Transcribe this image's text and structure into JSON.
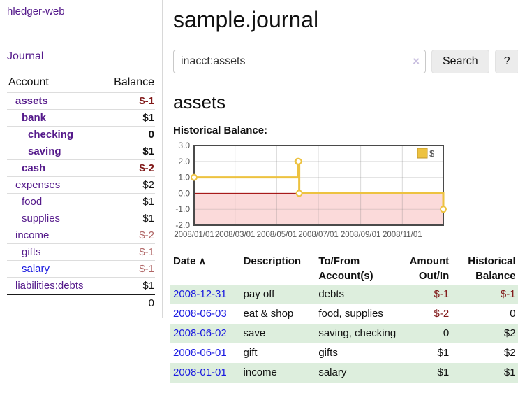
{
  "sidebar": {
    "app_title": "hledger-web",
    "nav_journal": "Journal",
    "table": {
      "header_account": "Account",
      "header_balance": "Balance",
      "accounts": [
        {
          "name": "assets",
          "balance": "$-1"
        },
        {
          "name": "bank",
          "balance": "$1"
        },
        {
          "name": "checking",
          "balance": "0"
        },
        {
          "name": "saving",
          "balance": "$1"
        },
        {
          "name": "cash",
          "balance": "$-2"
        },
        {
          "name": "expenses",
          "balance": "$2"
        },
        {
          "name": "food",
          "balance": "$1"
        },
        {
          "name": "supplies",
          "balance": "$1"
        },
        {
          "name": "income",
          "balance": "$-2"
        },
        {
          "name": "gifts",
          "balance": "$-1"
        },
        {
          "name": "salary",
          "balance": "$-1"
        },
        {
          "name": "liabilities:debts",
          "balance": "$1"
        }
      ],
      "total": "0"
    }
  },
  "header": {
    "title": "sample.journal"
  },
  "search": {
    "value": "inacct:assets",
    "clear_icon": "×",
    "button_label": "Search",
    "help_label": "?"
  },
  "account_page": {
    "heading": "assets",
    "chart_label": "Historical Balance:"
  },
  "chart_data": {
    "type": "line",
    "step": true,
    "title": "Historical Balance:",
    "series": [
      {
        "name": "$",
        "color": "#edc240",
        "points": [
          [
            "2008-01-01",
            1
          ],
          [
            "2008-06-01",
            2
          ],
          [
            "2008-06-02",
            2
          ],
          [
            "2008-06-03",
            0
          ],
          [
            "2008-12-31",
            -1
          ]
        ]
      }
    ],
    "ylim": [
      -2,
      3
    ],
    "yticks": [
      3.0,
      2.0,
      1.0,
      0.0,
      -1.0,
      -2.0
    ],
    "xticks": [
      "2008/01/01",
      "2008/03/01",
      "2008/05/01",
      "2008/07/01",
      "2008/09/01",
      "2008/11/01"
    ],
    "legend_position": "top-right",
    "grid": true,
    "negative_region_color": "#fbdada",
    "zero_line_color": "#a00000",
    "axis_text_color": "#545454",
    "border_color": "#4a4a4a"
  },
  "register_table": {
    "headers": {
      "date": "Date",
      "sort_icon": "∧",
      "description": "Description",
      "accounts": "To/From Account(s)",
      "amount": "Amount Out/In",
      "balance": "Historical Balance"
    },
    "rows": [
      {
        "date": "2008-12-31",
        "description": "pay off",
        "accounts": "debts",
        "amount": "$-1",
        "balance": "$-1"
      },
      {
        "date": "2008-06-03",
        "description": "eat & shop",
        "accounts": "food, supplies",
        "amount": "$-2",
        "balance": "0"
      },
      {
        "date": "2008-06-02",
        "description": "save",
        "accounts": "saving, checking",
        "amount": "0",
        "balance": "$2"
      },
      {
        "date": "2008-06-01",
        "description": "gift",
        "accounts": "gifts",
        "amount": "$1",
        "balance": "$2"
      },
      {
        "date": "2008-01-01",
        "description": "income",
        "accounts": "salary",
        "amount": "$1",
        "balance": "$1"
      }
    ]
  },
  "colors": {
    "link_purple": "#551a8b",
    "link_blue": "#1a1ae0",
    "negative_dark": "#801818",
    "negative_light": "#b06565",
    "row_stripe_green": "#ddeedd",
    "series_yellow": "#edc240"
  }
}
